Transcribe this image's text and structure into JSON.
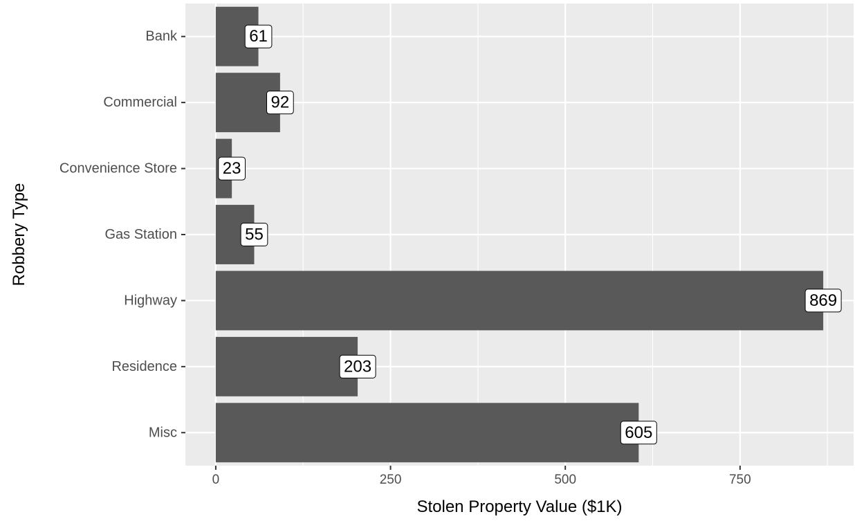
{
  "chart_data": {
    "type": "bar",
    "orientation": "horizontal",
    "title": "",
    "xlabel": "Stolen Property Value ($1K)",
    "ylabel": "Robbery Type",
    "categories": [
      "Bank",
      "Commercial",
      "Convenience Store",
      "Gas Station",
      "Highway",
      "Residence",
      "Misc"
    ],
    "values": [
      61,
      92,
      23,
      55,
      869,
      203,
      605
    ],
    "data_labels": [
      "61",
      "92",
      "23",
      "55",
      "869",
      "203",
      "605"
    ],
    "xlim": [
      -43.45,
      912.45
    ],
    "x_ticks": [
      0,
      250,
      500,
      750
    ],
    "x_tick_labels": [
      "0",
      "250",
      "500",
      "750"
    ],
    "grid": true,
    "legend": "none",
    "colors": {
      "panel_background": "#ebebeb",
      "grid_major": "#ffffff",
      "bar_fill": "#595959",
      "label_fill": "#ffffff",
      "label_border": "#000000",
      "tick_text": "#4d4d4d",
      "axis_title_text": "#000000"
    }
  }
}
